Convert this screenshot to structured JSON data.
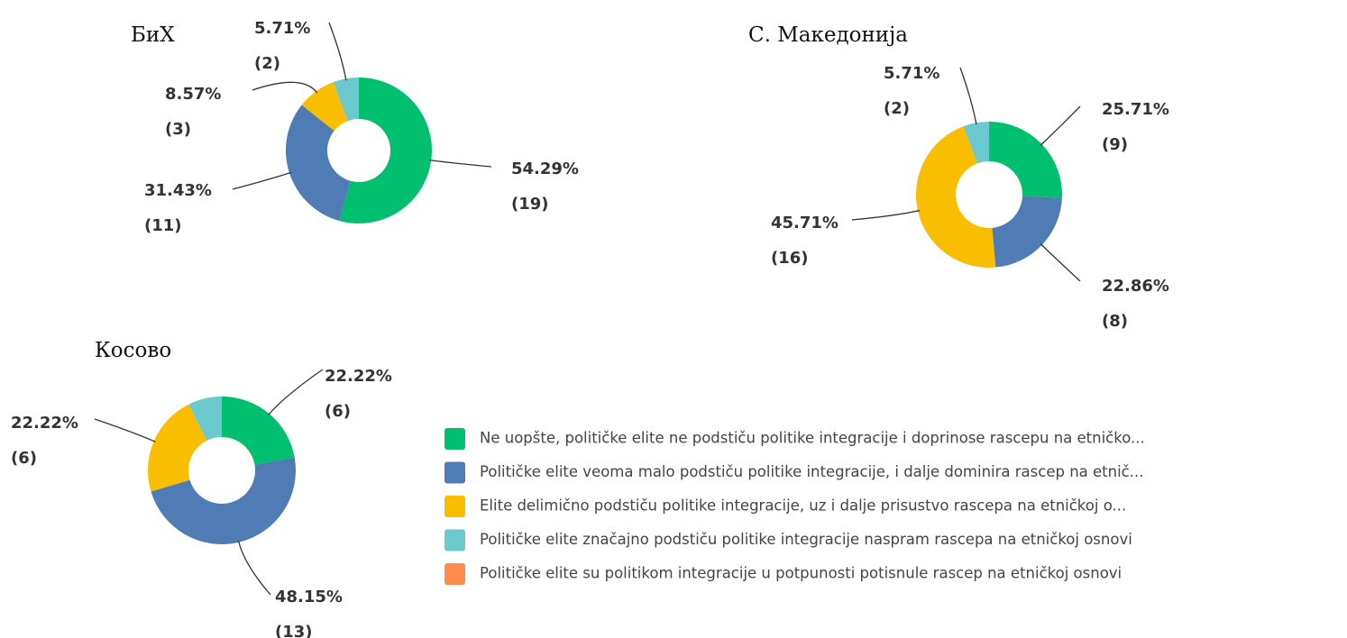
{
  "legend": {
    "categories": [
      "Ne uopšte, političke elite ne podstiču politike integracije i doprinose rascepu na etničko...",
      "Političke elite veoma malo podstiču politike integracije, i dalje dominira rascep na etnič...",
      "Elite delimično podstiču politike integracije, uz i dalje  prisustvo rascepa na etničkoj o...",
      "Političke elite značajno podstiču politike integracije naspram rascepa na etničkoj osnovi",
      "Političke elite su politikom integracije u potpunosti potisnule rascep na etničkoj osnovi"
    ],
    "colors": [
      "#00bf6f",
      "#507cb6",
      "#f9be00",
      "#6bc8cd",
      "#ff8b4f"
    ]
  },
  "chart_data": [
    {
      "type": "pie",
      "title": "БиХ",
      "values": [
        54.29,
        31.43,
        8.57,
        5.71,
        0
      ],
      "value_labels": [
        "54.29%",
        "31.43%",
        "8.57%",
        "5.71%",
        null
      ],
      "count_labels": [
        "(19)",
        "(11)",
        "(3)",
        "(2)",
        null
      ]
    },
    {
      "type": "pie",
      "title": "С. Македонија",
      "values": [
        25.71,
        22.86,
        45.71,
        5.71,
        0
      ],
      "value_labels": [
        "25.71%",
        "22.86%",
        "45.71%",
        "5.71%",
        null
      ],
      "count_labels": [
        "(9)",
        "(8)",
        "(16)",
        "(2)",
        null
      ]
    },
    {
      "type": "pie",
      "title": "Косово",
      "values": [
        22.22,
        48.15,
        22.22,
        7.41,
        0
      ],
      "value_labels": [
        "22.22%",
        "48.15%",
        "22.22%",
        null,
        null
      ],
      "count_labels": [
        "(6)",
        "(13)",
        "(6)",
        null,
        null
      ]
    }
  ]
}
